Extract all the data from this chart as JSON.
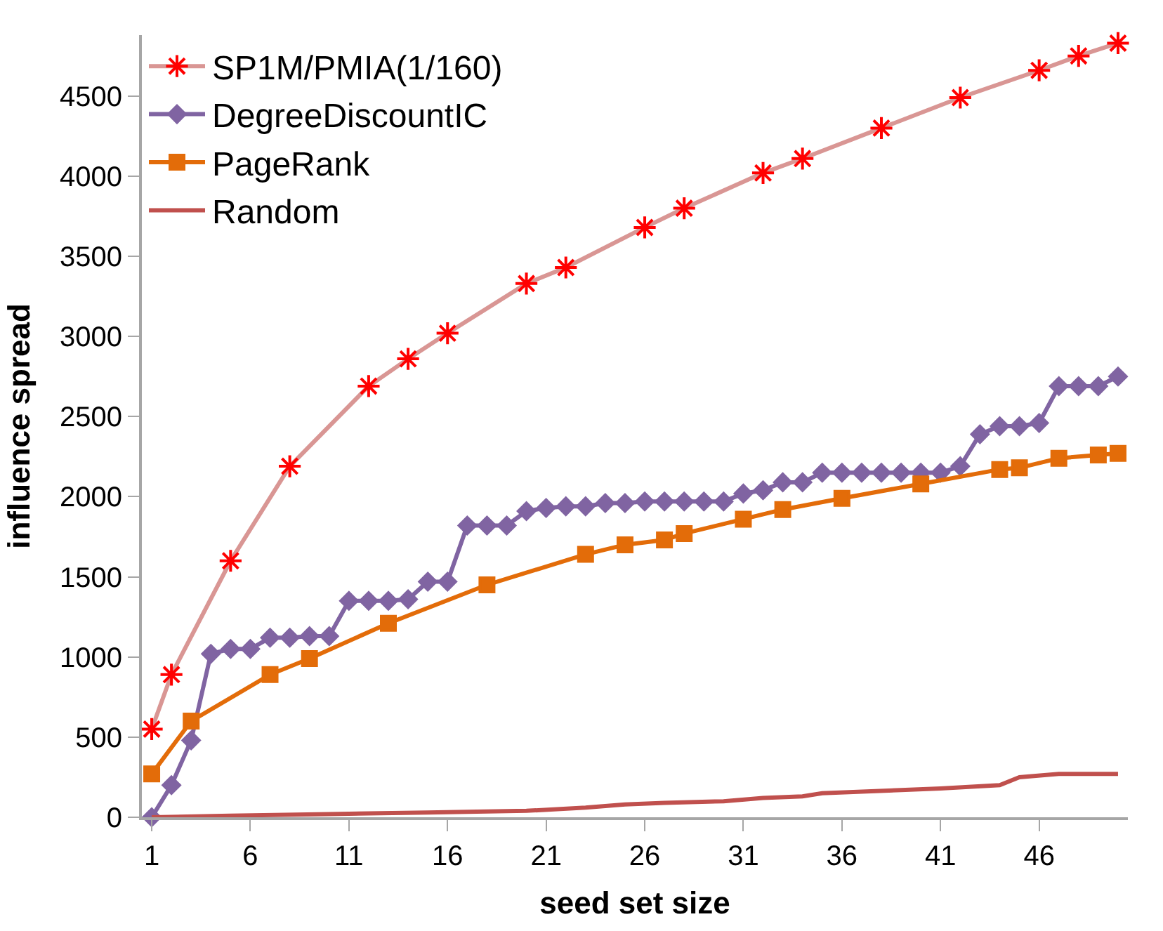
{
  "chart_data": {
    "type": "line",
    "xlabel": "seed set size",
    "ylabel": "influence spread",
    "xlim": [
      0.5,
      50.5
    ],
    "xticks": [
      1,
      6,
      11,
      16,
      21,
      26,
      31,
      36,
      41,
      46
    ],
    "ylim": [
      0,
      4880
    ],
    "yticks": [
      0,
      500,
      1000,
      1500,
      2000,
      2500,
      3000,
      3500,
      4000,
      4500
    ],
    "legend": "top left",
    "series": [
      {
        "name": "SP1M/PMIA(1/160)",
        "color": "#d99694",
        "colors": [
          "#ff0000",
          "#ff0000",
          "#ff0000",
          "#ff0000",
          "#ff0000",
          "#ff0000",
          "#ff0000",
          "#ff0000",
          "#ff0000",
          "#ff0000",
          "#ff0000",
          "#ff0000",
          "#ff0000",
          "#ff0000",
          "#ff0000",
          "#ff0000",
          "#ff0000",
          "#ff0000"
        ],
        "marker": "cross",
        "x": [
          1,
          2,
          5,
          8,
          12,
          14,
          16,
          20,
          22,
          26,
          28,
          32,
          34,
          38,
          42,
          46,
          48,
          50
        ],
        "values": [
          550,
          890,
          1600,
          2190,
          2690,
          2860,
          3020,
          3330,
          3430,
          3680,
          3800,
          4020,
          4110,
          4300,
          4490,
          4660,
          4750,
          4830
        ]
      },
      {
        "name": "DegreeDiscountIC",
        "color": "#8064a2",
        "marker": "diamond",
        "x": [
          1,
          2,
          3,
          4,
          5,
          6,
          7,
          8,
          9,
          10,
          11,
          12,
          13,
          14,
          15,
          16,
          17,
          18,
          19,
          20,
          21,
          22,
          23,
          24,
          25,
          26,
          27,
          28,
          29,
          30,
          31,
          32,
          33,
          34,
          35,
          36,
          37,
          38,
          39,
          40,
          41,
          42,
          43,
          44,
          45,
          46,
          47,
          48,
          49,
          50
        ],
        "values": [
          0,
          200,
          480,
          1020,
          1050,
          1050,
          1120,
          1120,
          1130,
          1130,
          1350,
          1350,
          1350,
          1360,
          1470,
          1470,
          1820,
          1820,
          1820,
          1910,
          1930,
          1940,
          1940,
          1960,
          1960,
          1970,
          1970,
          1970,
          1970,
          1970,
          2020,
          2040,
          2090,
          2090,
          2150,
          2150,
          2150,
          2150,
          2150,
          2150,
          2150,
          2190,
          2390,
          2440,
          2440,
          2460,
          2690,
          2690,
          2690,
          2750
        ]
      },
      {
        "name": "PageRank",
        "color": "#e36c09",
        "marker": "square",
        "x": [
          1,
          3,
          7,
          9,
          13,
          18,
          23,
          25,
          27,
          28,
          31,
          33,
          36,
          40,
          44,
          45,
          47,
          49,
          50
        ],
        "values": [
          270,
          600,
          890,
          990,
          1210,
          1450,
          1640,
          1700,
          1730,
          1770,
          1860,
          1920,
          1990,
          2080,
          2170,
          2180,
          2240,
          2260,
          2270
        ]
      },
      {
        "name": "Random",
        "color": "#c0504d",
        "marker": "none",
        "x": [
          1,
          5,
          10,
          15,
          20,
          23,
          25,
          27,
          30,
          32,
          34,
          35,
          39,
          41,
          44,
          45,
          47,
          50
        ],
        "values": [
          0,
          10,
          20,
          30,
          40,
          60,
          80,
          90,
          100,
          120,
          130,
          150,
          170,
          180,
          200,
          250,
          270,
          270
        ]
      }
    ]
  }
}
